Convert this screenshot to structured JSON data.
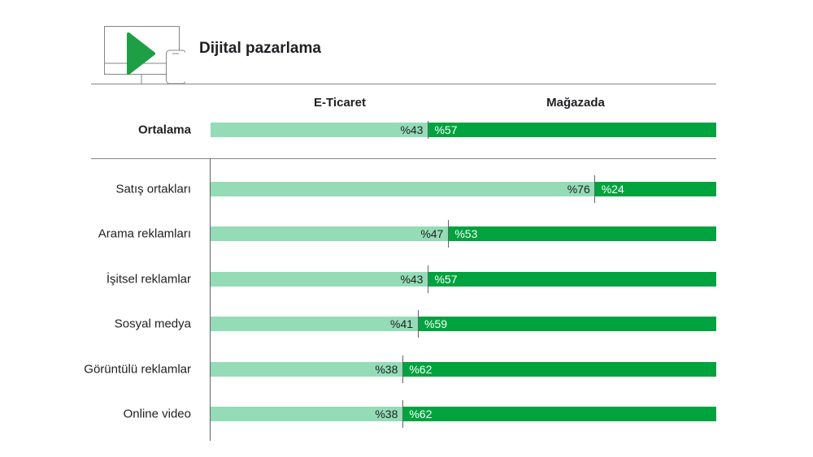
{
  "header": {
    "title": "Dijital pazarlama",
    "icon": "monitor-phone-play-icon"
  },
  "colors": {
    "ecommerce": "#93dcb6",
    "instore": "#00a33e",
    "play": "#1e9e45"
  },
  "chart_data": {
    "type": "bar",
    "stacked": true,
    "orientation": "horizontal",
    "title": "Dijital pazarlama",
    "legend": [
      "E-Ticaret",
      "Mağazada"
    ],
    "xlim": [
      0,
      100
    ],
    "summary": {
      "label": "Ortalama",
      "values": [
        43,
        57
      ],
      "labels": [
        "%43",
        "%57"
      ]
    },
    "categories": [
      "Satış ortakları",
      "Arama reklamları",
      "İşitsel reklamlar",
      "Sosyal medya",
      "Görüntülü reklamlar",
      "Online video"
    ],
    "series": [
      {
        "name": "E-Ticaret",
        "values": [
          76,
          47,
          43,
          41,
          38,
          38
        ],
        "labels": [
          "%76",
          "%47",
          "%43",
          "%41",
          "%38",
          "%38"
        ]
      },
      {
        "name": "Mağazada",
        "values": [
          24,
          53,
          57,
          59,
          62,
          62
        ],
        "labels": [
          "%24",
          "%53",
          "%57",
          "%59",
          "%62",
          "%62"
        ]
      }
    ]
  }
}
